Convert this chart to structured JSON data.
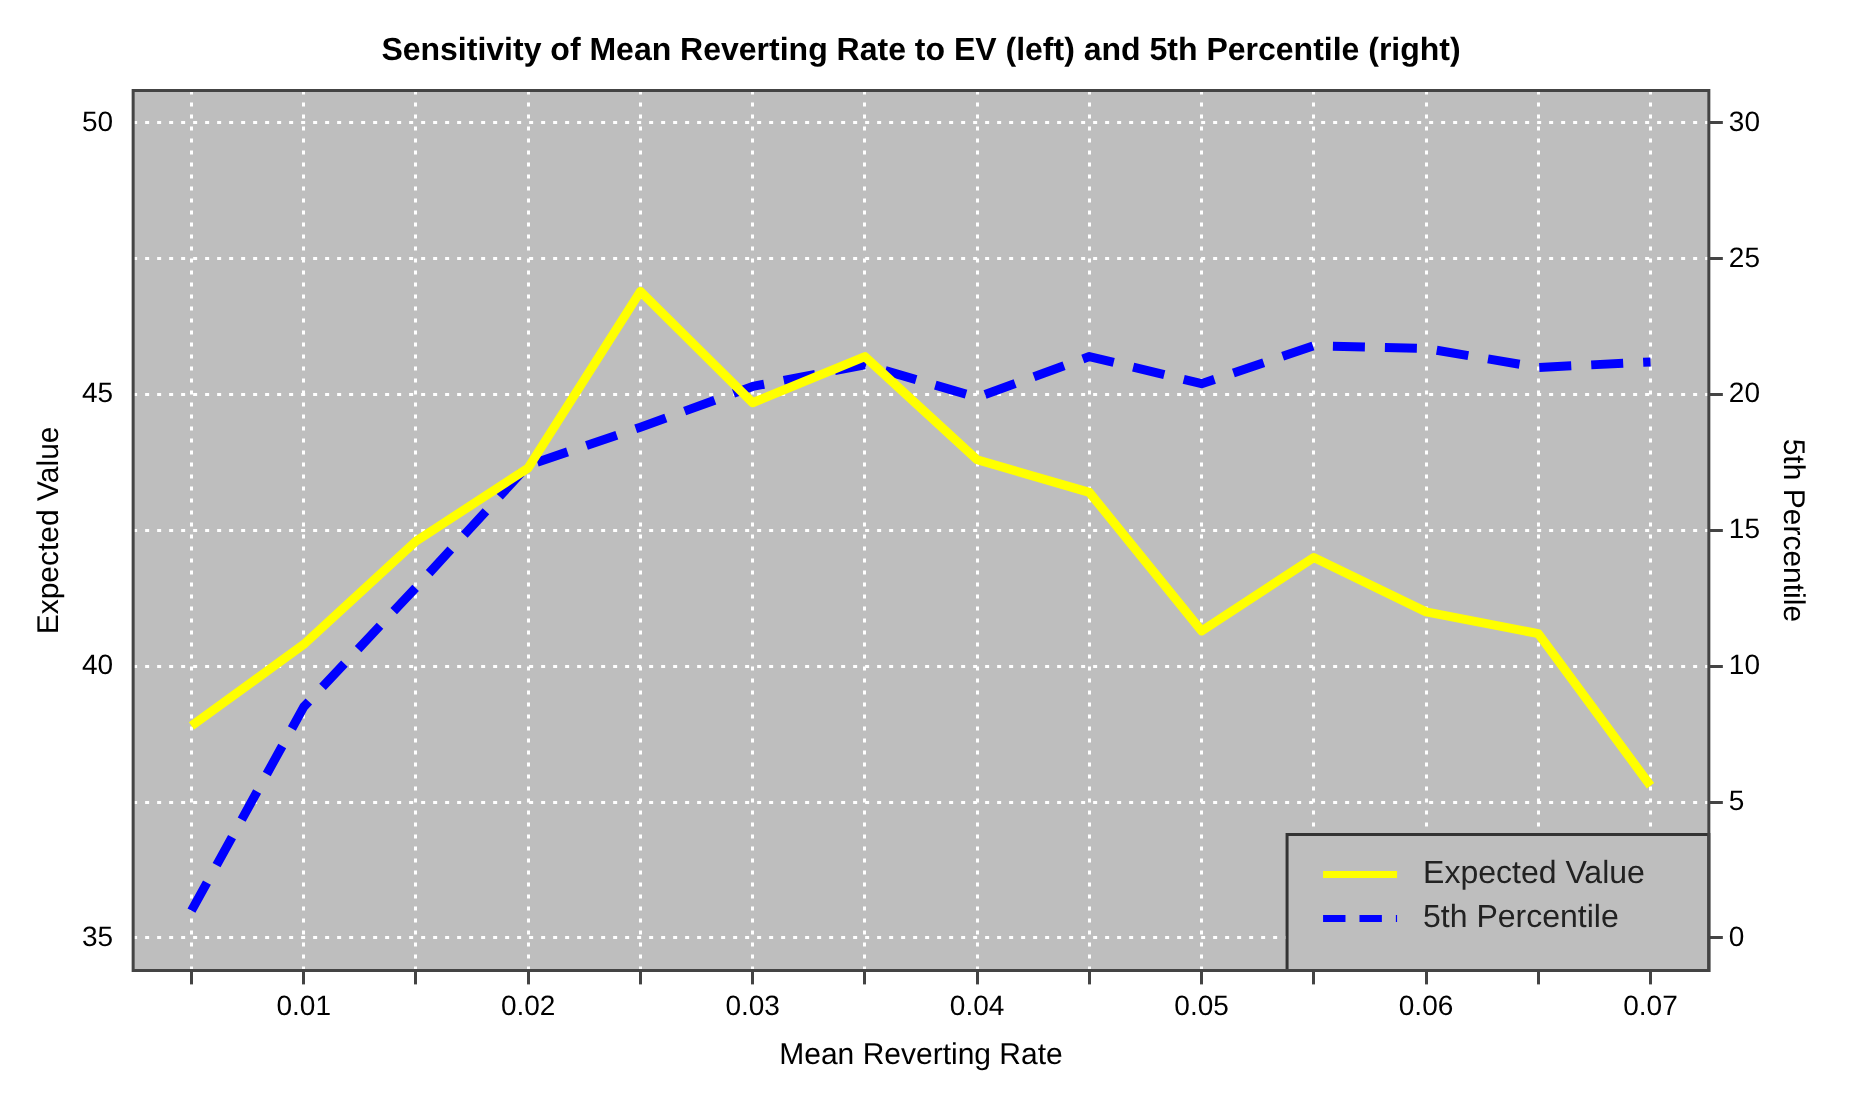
{
  "chart_data": {
    "type": "line",
    "title": "Sensitivity of Mean Reverting Rate to EV (left) and 5th Percentile (right)",
    "xlabel": "Mean Reverting Rate",
    "ylabel": "Expected Value",
    "y2label": "5th Percentile",
    "x": [
      0.005,
      0.01,
      0.015,
      0.02,
      0.025,
      0.03,
      0.035,
      0.04,
      0.045,
      0.05,
      0.055,
      0.06,
      0.065,
      0.07
    ],
    "series": [
      {
        "name": "Expected Value",
        "color": "#ffff00",
        "line_style": "solid",
        "values": [
          38.9,
          40.4,
          42.3,
          43.65,
          46.9,
          44.85,
          45.7,
          43.8,
          43.2,
          40.65,
          42.0,
          41.0,
          40.6,
          37.8
        ]
      },
      {
        "name": "5th Percentile",
        "color": "#0000ff",
        "line_style": "dashed",
        "axis": "y2",
        "values": [
          1.0,
          8.5,
          12.9,
          17.4,
          18.8,
          20.3,
          21.1,
          19.9,
          21.4,
          20.4,
          21.8,
          21.7,
          21.0,
          21.2
        ]
      }
    ],
    "xlim": [
      0.0024,
      0.0726
    ],
    "xticks": [
      {
        "value": 0.005,
        "label": null
      },
      0.01,
      {
        "value": 0.015,
        "label": null
      },
      0.02,
      {
        "value": 0.025,
        "label": null
      },
      0.03,
      {
        "value": 0.035,
        "label": null
      },
      0.04,
      {
        "value": 0.045,
        "label": null
      },
      0.05,
      {
        "value": 0.055,
        "label": null
      },
      0.06,
      {
        "value": 0.065,
        "label": null
      },
      0.07
    ],
    "ylim": [
      34.4,
      50.6
    ],
    "yticks": [
      35,
      40,
      45,
      50
    ],
    "y2lim": [
      -1.2,
      31.2
    ],
    "y2ticks": [
      0,
      5,
      10,
      15,
      20,
      25,
      30
    ],
    "grid": true,
    "legend": "bottom right",
    "marker": "none"
  }
}
